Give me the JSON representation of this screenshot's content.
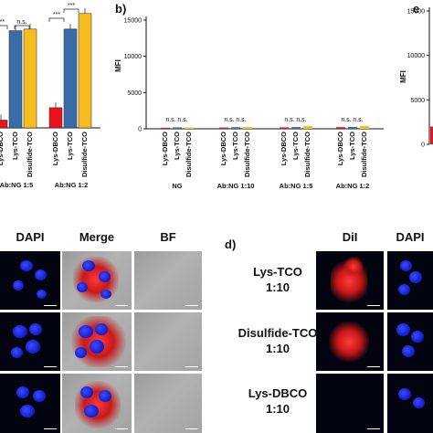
{
  "chart_data": [
    {
      "panel": "a",
      "type": "bar",
      "groups": [
        "Ab:NG 1:5",
        "Ab:NG 1:2"
      ],
      "categories": [
        "Lys-DBCO",
        "Lys-TCO",
        "Disulfide-TCO"
      ],
      "series": [
        {
          "group": "Ab:NG 1:5",
          "values": [
            1000,
            12500,
            12700
          ]
        },
        {
          "group": "Ab:NG 1:2",
          "values": [
            2600,
            12700,
            14700
          ]
        }
      ],
      "ylim": [
        0,
        15500
      ],
      "colors": [
        "#e8141c",
        "#3a6ca8",
        "#f5bd1f"
      ],
      "significance": [
        "***",
        "n.s.",
        "***",
        "***"
      ]
    },
    {
      "panel": "b",
      "type": "bar",
      "ylabel": "MFI",
      "ylim": [
        0,
        15000
      ],
      "yticks": [
        "0",
        "5000",
        "10000",
        "15000"
      ],
      "groups": [
        "NG",
        "Ab:NG 1:10",
        "Ab:NG 1:5",
        "Ab:NG 1:2"
      ],
      "categories": [
        "Lys-DBCO",
        "Lys-TCO",
        "Disulfide-TCO"
      ],
      "series": [
        {
          "group": "NG",
          "values": [
            150,
            200,
            180
          ]
        },
        {
          "group": "Ab:NG 1:10",
          "values": [
            180,
            220,
            260
          ]
        },
        {
          "group": "Ab:NG 1:5",
          "values": [
            200,
            240,
            380
          ]
        },
        {
          "group": "Ab:NG 1:2",
          "values": [
            230,
            260,
            400
          ]
        }
      ],
      "colors": [
        "#e8141c",
        "#3a6ca8",
        "#f5bd1f"
      ],
      "significance": [
        "n.s.",
        "n.s.",
        "n.s.",
        "n.s.",
        "n.s.",
        "n.s.",
        "n.s.",
        "n.s."
      ]
    },
    {
      "panel": "e",
      "type": "bar",
      "ylabel": "MFI",
      "ylim": [
        0,
        15000
      ],
      "yticks": [
        "0",
        "5000",
        "10000",
        "15000"
      ],
      "values": [
        2000
      ],
      "colors": [
        "#e8141c"
      ]
    }
  ],
  "panel_labels": {
    "b": "b)",
    "d": "d)",
    "e": "e"
  },
  "microscopy_left": {
    "columns": [
      "DAPI",
      "Merge",
      "BF"
    ]
  },
  "microscopy_right": {
    "rows": [
      "Lys-TCO\n1:10",
      "Disulfide-TCO\n1:10",
      "Lys-DBCO\n1:10"
    ],
    "columns": [
      "DiI",
      "DAPI"
    ]
  }
}
